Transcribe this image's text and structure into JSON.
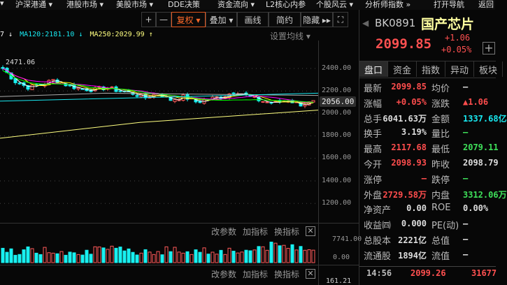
{
  "menu": [
    "▾",
    "沪深港通 ▾",
    "港股市场 ▾",
    "美股市场 ▾",
    "DDE决策",
    "资金流向 ▾",
    "L2核心内参",
    "个股风云 ▾",
    "分析师指数 »",
    "打开导航",
    "返回"
  ],
  "toolbar": {
    "plus": "+",
    "minus": "—",
    "fuquan": "复权 ▾",
    "overlay": "叠加 ▾",
    "draw": "画线",
    "simple": "简约",
    "hide": "隐藏 ▸▸",
    "fullscreen": "⛶"
  },
  "ma_legend": [
    {
      "text": "7 ↓",
      "color": "#ffffff"
    },
    {
      "text": "MA120:2181.10 ↓",
      "color": "#18e8f0"
    },
    {
      "text": "MA250:2029.99 ↑",
      "color": "#ffff80"
    }
  ],
  "set_ma": "设置均线 ▾",
  "chart": {
    "high_label": "2471.06",
    "price_ticks": [
      "2400.00",
      "2200.00",
      "2000.00",
      "1800.00",
      "1600.00",
      "1400.00",
      "1200.00"
    ],
    "current_price": "2056.00"
  },
  "volume_pane": {
    "buttons": [
      "改参数",
      "加指标",
      "换指标"
    ],
    "close": "✕",
    "ticks": [
      "7741.00",
      "0.00"
    ]
  },
  "pane3": {
    "buttons": [
      "改参数",
      "加指标",
      "换指标"
    ],
    "close": "✕",
    "tick": "161.21"
  },
  "quote": {
    "code": "BK0891",
    "name": "国产芯片",
    "price": "2099.85",
    "change": "+1.06",
    "change_pct": "+0.05%",
    "add": "+"
  },
  "tabs": [
    "盘口",
    "资金",
    "指数",
    "异动",
    "板块"
  ],
  "rows": [
    {
      "l1": "最新",
      "v1": "2099.85",
      "c1": "red",
      "l2": "均价",
      "v2": "—",
      "c2": "white"
    },
    {
      "l1": "涨幅",
      "v1": "+0.05%",
      "c1": "red",
      "l2": "涨跌",
      "v2": "▲1.06",
      "c2": "red"
    },
    {
      "l1": "总手",
      "v1": "6041.63万",
      "c1": "white",
      "l2": "金额",
      "v2": "1337.68亿",
      "c2": "cyan"
    },
    {
      "l1": "换手",
      "v1": "3.19%",
      "c1": "white",
      "l2": "量比",
      "v2": "—",
      "c2": "green"
    },
    {
      "l1": "最高",
      "v1": "2117.68",
      "c1": "red",
      "l2": "最低",
      "v2": "2079.11",
      "c2": "green"
    },
    {
      "l1": "今开",
      "v1": "2098.93",
      "c1": "red",
      "l2": "昨收",
      "v2": "2098.79",
      "c2": "white"
    },
    {
      "l1": "涨停",
      "v1": "—",
      "c1": "red",
      "l2": "跌停",
      "v2": "—",
      "c2": "green"
    },
    {
      "l1": "外盘",
      "v1": "2729.58万",
      "c1": "red",
      "l2": "内盘",
      "v2": "3312.06万",
      "c2": "green"
    },
    {
      "l1": "净资产",
      "v1": "0.00",
      "c1": "white",
      "l2": "ROE",
      "v2": "0.00%",
      "c2": "white"
    },
    {
      "l1": "收益㈣",
      "v1": "0.000",
      "c1": "white",
      "l2": "PE(动)",
      "v2": "—",
      "c2": "white"
    },
    {
      "l1": "总股本",
      "v1": "2221亿",
      "c1": "white",
      "l2": "总值",
      "v2": "—",
      "c2": "white"
    },
    {
      "l1": "流通股",
      "v1": "1894亿",
      "c1": "white",
      "l2": "流值",
      "v2": "—",
      "c2": "white"
    }
  ],
  "tick": {
    "time": "14:56",
    "price": "2099.26",
    "volume": "31677"
  }
}
